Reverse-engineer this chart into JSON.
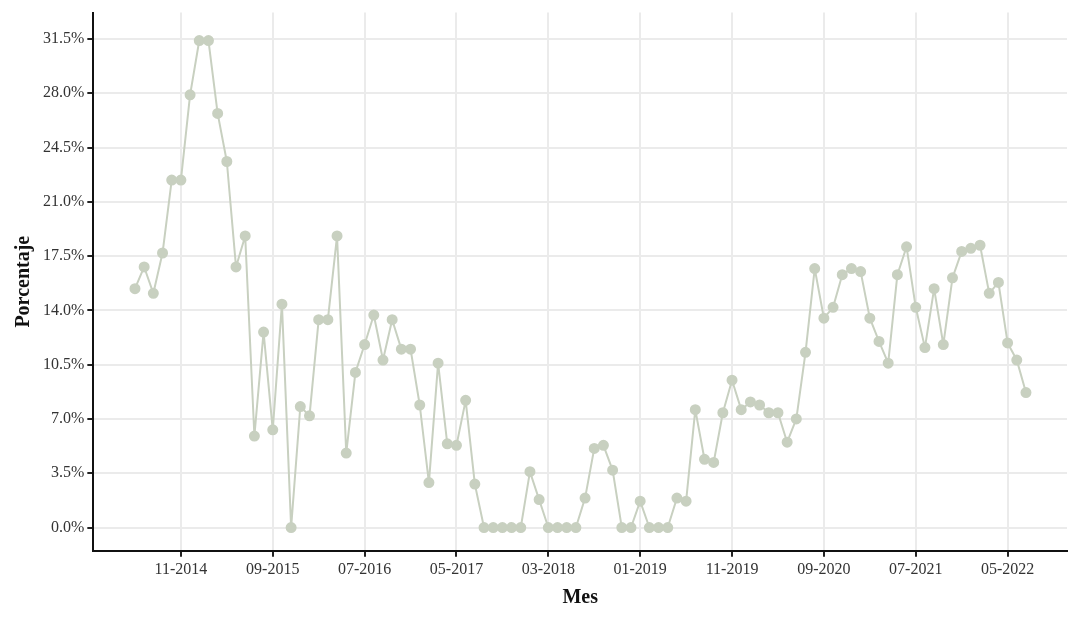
{
  "chart_data": {
    "type": "line",
    "xlabel": "Mes",
    "ylabel": "Porcentaje",
    "marker": "circle",
    "grid": true,
    "legend": false,
    "x": [
      "2014-06",
      "2014-07",
      "2014-08",
      "2014-09",
      "2014-10",
      "2014-11",
      "2014-12",
      "2015-01",
      "2015-02",
      "2015-03",
      "2015-04",
      "2015-05",
      "2015-06",
      "2015-07",
      "2015-08",
      "2015-09",
      "2015-10",
      "2015-11",
      "2015-12",
      "2016-01",
      "2016-02",
      "2016-03",
      "2016-04",
      "2016-05",
      "2016-06",
      "2016-07",
      "2016-08",
      "2016-09",
      "2016-10",
      "2016-11",
      "2016-12",
      "2017-01",
      "2017-02",
      "2017-03",
      "2017-04",
      "2017-05",
      "2017-06",
      "2017-07",
      "2017-08",
      "2017-09",
      "2017-10",
      "2017-11",
      "2017-12",
      "2018-01",
      "2018-02",
      "2018-03",
      "2018-04",
      "2018-05",
      "2018-06",
      "2018-07",
      "2018-08",
      "2018-09",
      "2018-10",
      "2018-11",
      "2018-12",
      "2019-01",
      "2019-02",
      "2019-03",
      "2019-04",
      "2019-05",
      "2019-06",
      "2019-07",
      "2019-08",
      "2019-09",
      "2019-10",
      "2019-11",
      "2019-12",
      "2020-01",
      "2020-02",
      "2020-03",
      "2020-04",
      "2020-05",
      "2020-06",
      "2020-07",
      "2020-08",
      "2020-09",
      "2020-10",
      "2020-11",
      "2020-12",
      "2021-01",
      "2021-02",
      "2021-03",
      "2021-04",
      "2021-05",
      "2021-06",
      "2021-07",
      "2021-08",
      "2021-09",
      "2021-10",
      "2021-11",
      "2021-12",
      "2022-01",
      "2022-02",
      "2022-03",
      "2022-04",
      "2022-05",
      "2022-06",
      "2022-07"
    ],
    "series": [
      {
        "color": "#c8d0c0",
        "values": [
          15.4,
          16.8,
          15.1,
          17.7,
          22.4,
          22.4,
          27.9,
          31.4,
          31.4,
          26.7,
          23.6,
          16.8,
          18.8,
          5.9,
          12.6,
          6.3,
          14.4,
          0.0,
          7.8,
          7.2,
          13.4,
          13.4,
          18.8,
          4.8,
          10.0,
          11.8,
          13.7,
          10.8,
          13.4,
          11.5,
          11.5,
          7.9,
          2.9,
          10.6,
          5.4,
          5.3,
          8.2,
          2.8,
          0,
          0,
          0,
          0,
          0,
          3.6,
          1.8,
          0,
          0,
          0,
          0,
          1.9,
          5.1,
          5.3,
          3.7,
          0,
          0,
          1.7,
          0,
          0,
          0,
          1.9,
          1.7,
          7.6,
          4.4,
          4.2,
          7.4,
          9.5,
          7.6,
          8.1,
          7.9,
          7.4,
          7.4,
          5.5,
          7.0,
          11.3,
          16.7,
          13.5,
          14.2,
          16.3,
          16.7,
          16.5,
          13.5,
          12.0,
          10.6,
          16.3,
          18.1,
          14.2,
          11.6,
          15.4,
          11.8,
          16.1,
          17.8,
          18.0,
          18.2,
          15.1,
          15.8,
          11.9,
          10.8,
          8.7
        ]
      }
    ],
    "xlim": [
      "2014-01-15",
      "2022-11-15"
    ],
    "xticks": [
      {
        "value": "2014-11",
        "label": "11-2014"
      },
      {
        "value": "2015-09",
        "label": "09-2015"
      },
      {
        "value": "2016-07",
        "label": "07-2016"
      },
      {
        "value": "2017-05",
        "label": "05-2017"
      },
      {
        "value": "2018-03",
        "label": "03-2018"
      },
      {
        "value": "2019-01",
        "label": "01-2019"
      },
      {
        "value": "2019-11",
        "label": "11-2019"
      },
      {
        "value": "2020-09",
        "label": "09-2020"
      },
      {
        "value": "2021-07",
        "label": "07-2021"
      },
      {
        "value": "2022-05",
        "label": "05-2022"
      }
    ],
    "ylim": [
      -1.5,
      33.2
    ],
    "yticks": [
      {
        "value": 0,
        "label": "0.0%"
      },
      {
        "value": 3.5,
        "label": "3.5%"
      },
      {
        "value": 7,
        "label": "7.0%"
      },
      {
        "value": 10.5,
        "label": "10.5%"
      },
      {
        "value": 14,
        "label": "14.0%"
      },
      {
        "value": 17.5,
        "label": "17.5%"
      },
      {
        "value": 21,
        "label": "21.0%"
      },
      {
        "value": 24.5,
        "label": "24.5%"
      },
      {
        "value": 28,
        "label": "28.0%"
      },
      {
        "value": 31.5,
        "label": "31.5%"
      }
    ]
  }
}
